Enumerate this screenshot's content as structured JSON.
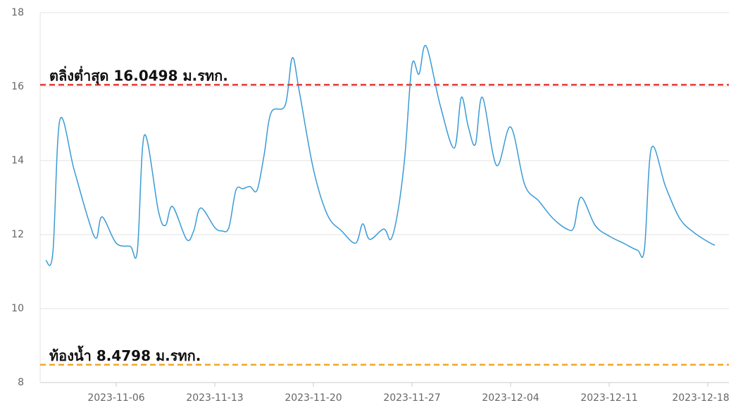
{
  "chart_data": {
    "type": "line",
    "x": [
      "2023-11-01T00:00",
      "2023-11-01T12:00",
      "2023-11-02T00:00",
      "2023-11-03T00:00",
      "2023-11-04T00:00",
      "2023-11-04T14:00",
      "2023-11-05T00:00",
      "2023-11-06T00:00",
      "2023-11-07T00:00",
      "2023-11-07T12:00",
      "2023-11-08T00:00",
      "2023-11-09T00:00",
      "2023-11-09T12:00",
      "2023-11-10T00:00",
      "2023-11-11T00:00",
      "2023-11-11T12:00",
      "2023-11-12T00:00",
      "2023-11-13T00:00",
      "2023-11-13T12:00",
      "2023-11-14T00:00",
      "2023-11-14T12:00",
      "2023-11-15T00:00",
      "2023-11-15T12:00",
      "2023-11-16T00:00",
      "2023-11-16T12:00",
      "2023-11-17T00:00",
      "2023-11-18T00:00",
      "2023-11-18T12:00",
      "2023-11-19T00:00",
      "2023-11-20T00:00",
      "2023-11-21T00:00",
      "2023-11-22T00:00",
      "2023-11-23T00:00",
      "2023-11-23T12:00",
      "2023-11-24T00:00",
      "2023-11-25T00:00",
      "2023-11-25T12:00",
      "2023-11-26T00:00",
      "2023-11-26T12:00",
      "2023-11-27T00:00",
      "2023-11-27T12:00",
      "2023-11-28T00:00",
      "2023-11-29T00:00",
      "2023-11-30T00:00",
      "2023-11-30T12:00",
      "2023-12-01T00:00",
      "2023-12-01T12:00",
      "2023-12-02T00:00",
      "2023-12-03T00:00",
      "2023-12-04T00:00",
      "2023-12-05T00:00",
      "2023-12-06T00:00",
      "2023-12-07T00:00",
      "2023-12-08T00:00",
      "2023-12-08T12:00",
      "2023-12-09T00:00",
      "2023-12-10T00:00",
      "2023-12-11T00:00",
      "2023-12-12T00:00",
      "2023-12-13T00:00",
      "2023-12-13T12:00",
      "2023-12-14T00:00",
      "2023-12-15T00:00",
      "2023-12-16T00:00",
      "2023-12-17T00:00",
      "2023-12-18T00:00",
      "2023-12-18T12:00"
    ],
    "series": [
      {
        "color": "#3a9bd5",
        "values": [
          11.3,
          11.5,
          15.1,
          13.77,
          12.44,
          11.9,
          12.48,
          11.77,
          11.68,
          11.56,
          14.69,
          12.63,
          12.25,
          12.76,
          11.87,
          12.1,
          12.72,
          12.19,
          12.1,
          12.19,
          13.2,
          13.24,
          13.3,
          13.2,
          14.15,
          15.3,
          15.5,
          16.78,
          15.87,
          13.77,
          12.53,
          12.1,
          11.77,
          12.29,
          11.87,
          12.15,
          11.87,
          12.63,
          14.15,
          16.59,
          16.34,
          17.1,
          15.5,
          14.34,
          15.71,
          14.91,
          14.44,
          15.71,
          13.87,
          14.91,
          13.35,
          12.91,
          12.44,
          12.15,
          12.2,
          13.01,
          12.25,
          11.96,
          11.77,
          11.58,
          11.6,
          14.34,
          13.3,
          12.44,
          12.06,
          11.81,
          11.71
        ]
      }
    ],
    "xlim": [
      "2023-10-31T14:24",
      "2023-12-19T12:00"
    ],
    "xticks": [
      "2023-11-06",
      "2023-11-13",
      "2023-11-20",
      "2023-11-27",
      "2023-12-04",
      "2023-12-11",
      "2023-12-18"
    ],
    "ylim": [
      8,
      18
    ],
    "yticks": [
      8,
      10,
      12,
      14,
      16,
      18
    ],
    "grid": true,
    "reference_lines": [
      {
        "value": 16.0498,
        "label": "ตลิ่งต่ำสุด 16.0498 ม.รทก.",
        "color": "#e53935"
      },
      {
        "value": 8.4798,
        "label": "ท้องน้ำ 8.4798 ม.รทก.",
        "color": "#f5a623"
      }
    ]
  }
}
